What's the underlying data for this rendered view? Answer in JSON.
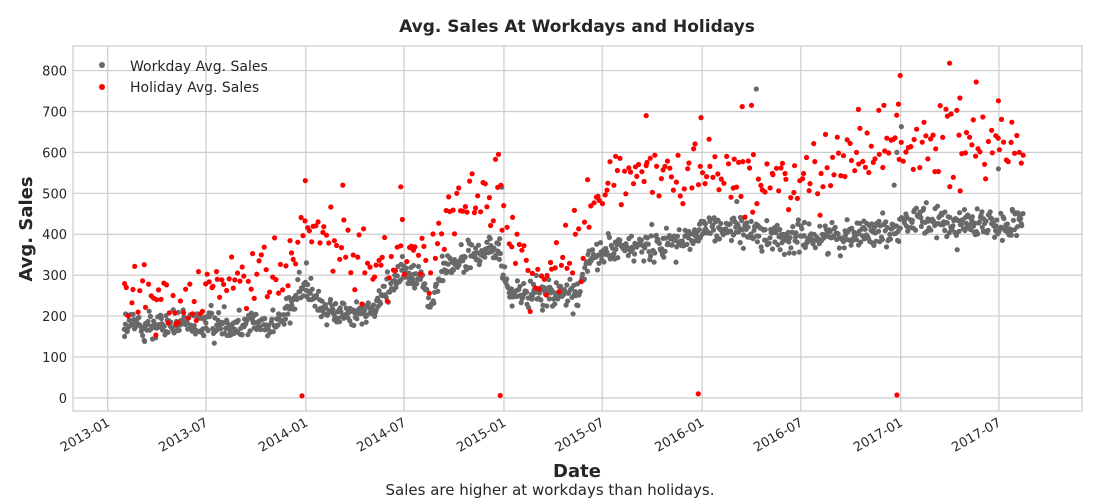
{
  "chart_data": {
    "type": "scatter",
    "title": "Avg. Sales At Workdays and Holidays",
    "xlabel": "Date",
    "ylabel": "Avg. Sales",
    "caption": "Sales are higher at workdays than holidays.",
    "xlim": [
      "2012-10-29",
      "2017-12-01"
    ],
    "ylim": [
      -32,
      860
    ],
    "x_ticks": [
      "2013-01",
      "2013-07",
      "2014-01",
      "2014-07",
      "2015-01",
      "2015-07",
      "2016-01",
      "2016-07",
      "2017-01",
      "2017-07"
    ],
    "y_ticks": [
      0,
      100,
      200,
      300,
      400,
      500,
      600,
      700,
      800
    ],
    "grid": true,
    "legend_position": "top-left",
    "series": [
      {
        "name": "Workday Avg. Sales",
        "color": "#696969",
        "trend": [
          [
            "2013-02-01",
            175
          ],
          [
            "2013-06-01",
            180
          ],
          [
            "2013-11-15",
            185
          ],
          [
            "2013-12-20",
            260
          ],
          [
            "2014-01-10",
            270
          ],
          [
            "2014-02-10",
            205
          ],
          [
            "2014-05-01",
            210
          ],
          [
            "2014-06-25",
            310
          ],
          [
            "2014-08-01",
            300
          ],
          [
            "2014-08-20",
            215
          ],
          [
            "2014-09-10",
            320
          ],
          [
            "2014-12-20",
            370
          ],
          [
            "2015-01-10",
            255
          ],
          [
            "2015-05-15",
            250
          ],
          [
            "2015-06-10",
            350
          ],
          [
            "2015-12-15",
            390
          ],
          [
            "2016-01-15",
            420
          ],
          [
            "2016-06-15",
            390
          ],
          [
            "2016-12-15",
            410
          ],
          [
            "2017-01-05",
            430
          ],
          [
            "2017-08-15",
            420
          ]
        ],
        "spread": 30,
        "points": [
          {
            "x": "2013-02-01",
            "y": 150
          },
          {
            "x": "2013-02-03",
            "y": 205
          },
          {
            "x": "2013-03-10",
            "y": 138
          },
          {
            "x": "2014-01-02",
            "y": 330
          },
          {
            "x": "2014-12-28",
            "y": 515
          },
          {
            "x": "2016-03-05",
            "y": 480
          },
          {
            "x": "2016-04-10",
            "y": 755
          },
          {
            "x": "2016-12-20",
            "y": 520
          },
          {
            "x": "2016-12-25",
            "y": 600
          },
          {
            "x": "2017-01-02",
            "y": 663
          },
          {
            "x": "2017-06-30",
            "y": 560
          }
        ]
      },
      {
        "name": "Holiday Avg. Sales",
        "color": "#ff0000",
        "trend": [
          [
            "2013-02-01",
            250
          ],
          [
            "2013-06-01",
            260
          ],
          [
            "2013-11-15",
            300
          ],
          [
            "2013-12-28",
            380
          ],
          [
            "2014-01-10",
            400
          ],
          [
            "2014-02-10",
            400
          ],
          [
            "2014-04-01",
            330
          ],
          [
            "2014-06-10",
            300
          ],
          [
            "2014-07-10",
            400
          ],
          [
            "2014-08-15",
            310
          ],
          [
            "2014-09-15",
            450
          ],
          [
            "2014-12-20",
            520
          ],
          [
            "2015-01-10",
            380
          ],
          [
            "2015-03-01",
            280
          ],
          [
            "2015-05-15",
            370
          ],
          [
            "2015-06-15",
            500
          ],
          [
            "2015-12-20",
            570
          ],
          [
            "2016-01-15",
            560
          ],
          [
            "2016-06-15",
            520
          ],
          [
            "2016-12-15",
            620
          ],
          [
            "2017-01-10",
            620
          ],
          [
            "2017-08-15",
            600
          ]
        ],
        "spread": 75,
        "points": [
          {
            "x": "2013-12-25",
            "y": 5
          },
          {
            "x": "2014-12-25",
            "y": 6
          },
          {
            "x": "2015-12-25",
            "y": 10
          },
          {
            "x": "2016-12-25",
            "y": 7
          },
          {
            "x": "2013-12-31",
            "y": 531
          },
          {
            "x": "2014-03-10",
            "y": 520
          },
          {
            "x": "2014-06-25",
            "y": 516
          },
          {
            "x": "2014-12-22",
            "y": 595
          },
          {
            "x": "2015-09-20",
            "y": 690
          },
          {
            "x": "2015-12-30",
            "y": 685
          },
          {
            "x": "2016-03-15",
            "y": 712
          },
          {
            "x": "2016-04-01",
            "y": 715
          },
          {
            "x": "2016-10-15",
            "y": 705
          },
          {
            "x": "2016-12-01",
            "y": 715
          },
          {
            "x": "2016-12-28",
            "y": 718
          },
          {
            "x": "2016-12-31",
            "y": 788
          },
          {
            "x": "2017-04-01",
            "y": 818
          },
          {
            "x": "2017-05-20",
            "y": 772
          },
          {
            "x": "2017-04-20",
            "y": 733
          },
          {
            "x": "2017-06-30",
            "y": 726
          }
        ]
      }
    ]
  }
}
